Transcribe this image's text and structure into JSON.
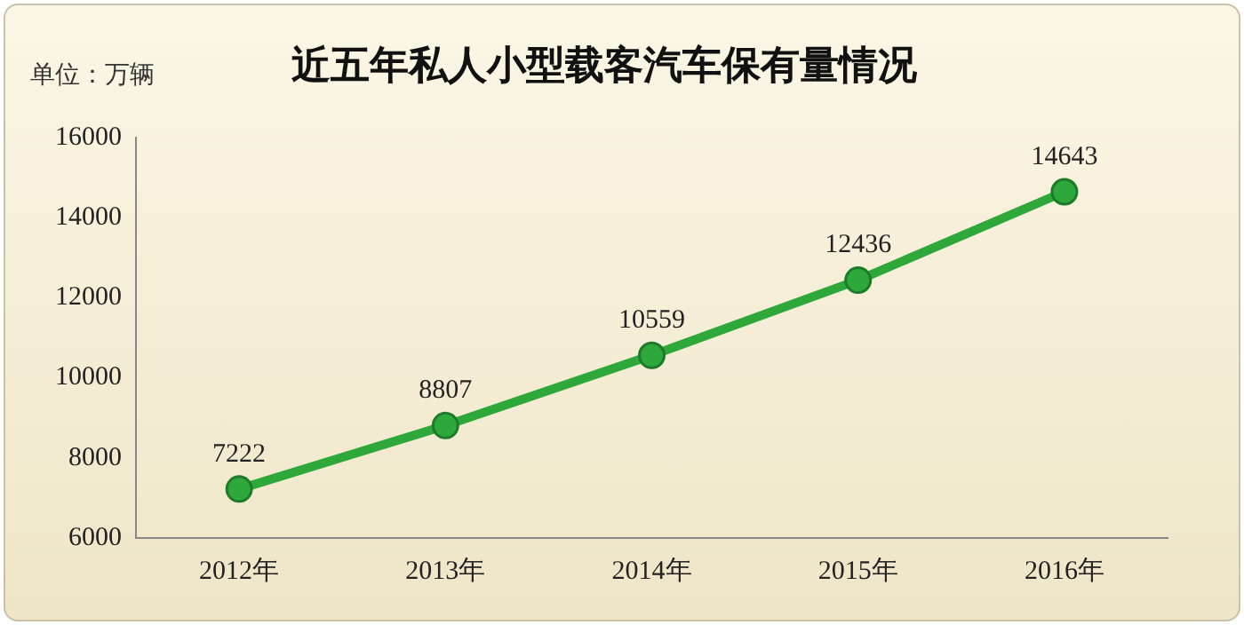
{
  "chart_data": {
    "type": "line",
    "title": "近五年私人小型载客汽车保有量情况",
    "ylabel": "单位：万辆",
    "categories": [
      "2012年",
      "2013年",
      "2014年",
      "2015年",
      "2016年"
    ],
    "series": [
      {
        "color": "#2ea83a",
        "values": [
          7222,
          8807,
          10559,
          12436,
          14643
        ]
      }
    ],
    "ylim": [
      6000,
      16000
    ],
    "yticks": [
      6000,
      8000,
      10000,
      12000,
      14000,
      16000
    ],
    "grid": false,
    "legend": false,
    "marker": "circle",
    "line_style": "solid",
    "data_labels": true
  }
}
